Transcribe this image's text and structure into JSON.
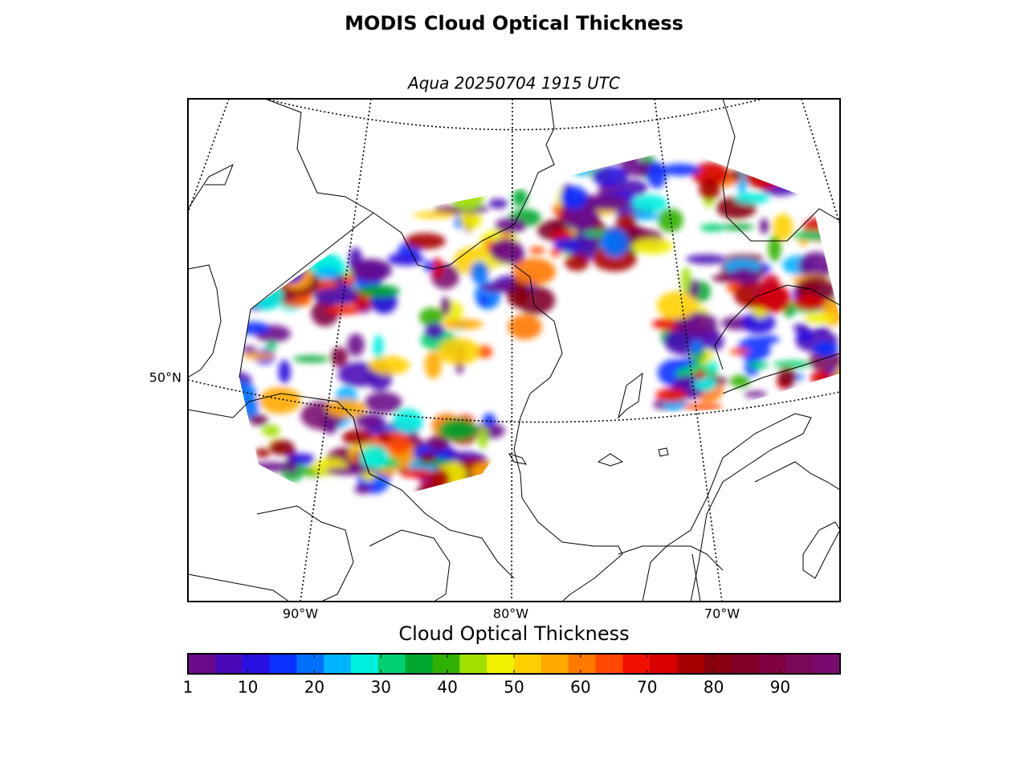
{
  "map": {
    "title": "MODIS Cloud Optical Thickness",
    "subtitle": "Aqua 20250704 1915 UTC",
    "lon_labels": [
      "90°W",
      "80°W",
      "70°W"
    ],
    "lat_labels": [
      "50°N"
    ],
    "colorbar": {
      "label": "Cloud Optical Thickness",
      "clim": [
        1,
        99
      ],
      "ticks": [
        1,
        10,
        20,
        30,
        40,
        50,
        60,
        70,
        80,
        90
      ],
      "colormap": [
        "#6c0a8c",
        "#4a08b8",
        "#2a10e0",
        "#0a30ff",
        "#0070ff",
        "#00b4ff",
        "#00f0e0",
        "#00d070",
        "#00a830",
        "#30b000",
        "#a0e000",
        "#f0f000",
        "#ffd000",
        "#ffa800",
        "#ff7800",
        "#ff4800",
        "#f01000",
        "#d80000",
        "#a80000",
        "#880010",
        "#800028",
        "#800040",
        "#7a0858",
        "#7a0a70"
      ]
    }
  }
}
